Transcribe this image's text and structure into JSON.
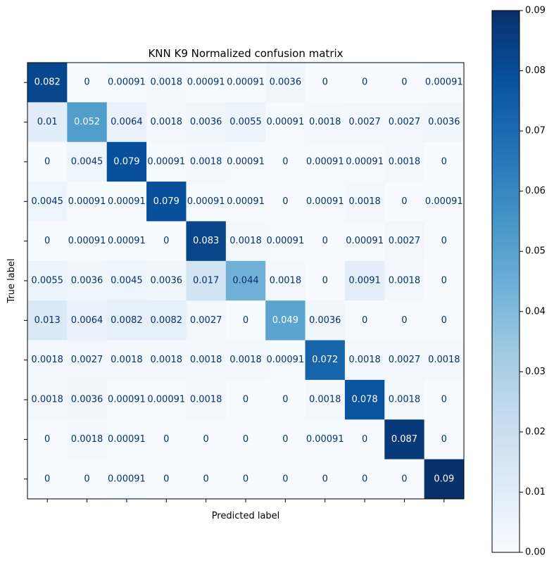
{
  "chart_data": {
    "type": "heatmap",
    "title": "KNN K9 Normalized confusion matrix",
    "xlabel": "Predicted label",
    "ylabel": "True label",
    "x_tick_labels": [
      "",
      "",
      "",
      "",
      "",
      "",
      "",
      "",
      "",
      "",
      ""
    ],
    "y_tick_labels": [
      "",
      "",
      "",
      "",
      "",
      "",
      "",
      "",
      "",
      "",
      ""
    ],
    "colormap": "Blues",
    "vmin": 0.0,
    "vmax": 0.09,
    "colorbar_ticks": [
      "0.00",
      "0.01",
      "0.02",
      "0.03",
      "0.04",
      "0.05",
      "0.06",
      "0.07",
      "0.08",
      "0.09"
    ],
    "colors": {
      "low": "#f7fbff",
      "high": "#08306b",
      "text_dark": "#08306b",
      "text_light": "#ffffff"
    },
    "matrix": [
      [
        "0.082",
        "0",
        "0.00091",
        "0.0018",
        "0.00091",
        "0.00091",
        "0.0036",
        "0",
        "0",
        "0",
        "0.00091"
      ],
      [
        "0.01",
        "0.052",
        "0.0064",
        "0.0018",
        "0.0036",
        "0.0055",
        "0.00091",
        "0.0018",
        "0.0027",
        "0.0027",
        "0.0036"
      ],
      [
        "0",
        "0.0045",
        "0.079",
        "0.00091",
        "0.0018",
        "0.00091",
        "0",
        "0.00091",
        "0.00091",
        "0.0018",
        "0"
      ],
      [
        "0.0045",
        "0.00091",
        "0.00091",
        "0.079",
        "0.00091",
        "0.00091",
        "0",
        "0.00091",
        "0.0018",
        "0",
        "0.00091"
      ],
      [
        "0",
        "0.00091",
        "0.00091",
        "0",
        "0.083",
        "0.0018",
        "0.00091",
        "0",
        "0.00091",
        "0.0027",
        "0"
      ],
      [
        "0.0055",
        "0.0036",
        "0.0045",
        "0.0036",
        "0.017",
        "0.044",
        "0.0018",
        "0",
        "0.0091",
        "0.0018",
        "0"
      ],
      [
        "0.013",
        "0.0064",
        "0.0082",
        "0.0082",
        "0.0027",
        "0",
        "0.049",
        "0.0036",
        "0",
        "0",
        "0"
      ],
      [
        "0.0018",
        "0.0027",
        "0.0018",
        "0.0018",
        "0.0018",
        "0.0018",
        "0.00091",
        "0.072",
        "0.0018",
        "0.0027",
        "0.0018"
      ],
      [
        "0.0018",
        "0.0036",
        "0.00091",
        "0.00091",
        "0.0018",
        "0",
        "0",
        "0.0018",
        "0.078",
        "0.0018",
        "0"
      ],
      [
        "0",
        "0.0018",
        "0.00091",
        "0",
        "0",
        "0",
        "0",
        "0.00091",
        "0",
        "0.087",
        "0"
      ],
      [
        "0",
        "0",
        "0.00091",
        "0",
        "0",
        "0",
        "0",
        "0",
        "0",
        "0",
        "0.09"
      ]
    ]
  }
}
